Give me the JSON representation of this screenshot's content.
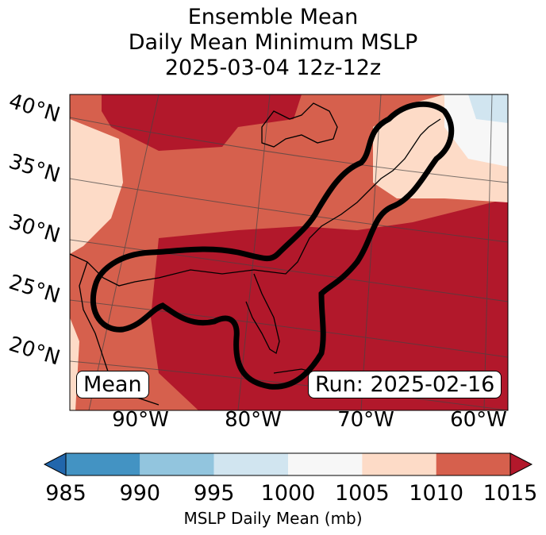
{
  "title": {
    "line1": "Ensemble Mean",
    "line2": "Daily Mean Minimum MSLP",
    "line3": "2025-03-04 12z-12z"
  },
  "map": {
    "lat_labels": [
      "40°N",
      "35°N",
      "30°N",
      "25°N",
      "20°N"
    ],
    "lon_labels": [
      "90°W",
      "80°W",
      "70°W",
      "60°W"
    ],
    "mean_label": "Mean",
    "run_label": "Run: 2025-02-16",
    "contour_color": "#000000"
  },
  "colorbar": {
    "label": "MSLP Daily Mean (mb)",
    "ticks": [
      "985",
      "990",
      "995",
      "1000",
      "1005",
      "1010",
      "1015"
    ],
    "bins": [
      {
        "range": "985-990",
        "color": "#4393c3"
      },
      {
        "range": "990-995",
        "color": "#92c5de"
      },
      {
        "range": "995-1000",
        "color": "#d1e5f0"
      },
      {
        "range": "1000-1005",
        "color": "#f7f7f7"
      },
      {
        "range": "1005-1010",
        "color": "#fddbc7"
      },
      {
        "range": "1010-1015",
        "color": "#d6604d"
      }
    ],
    "under_color": "#2166ac",
    "over_color": "#b2182b"
  }
}
